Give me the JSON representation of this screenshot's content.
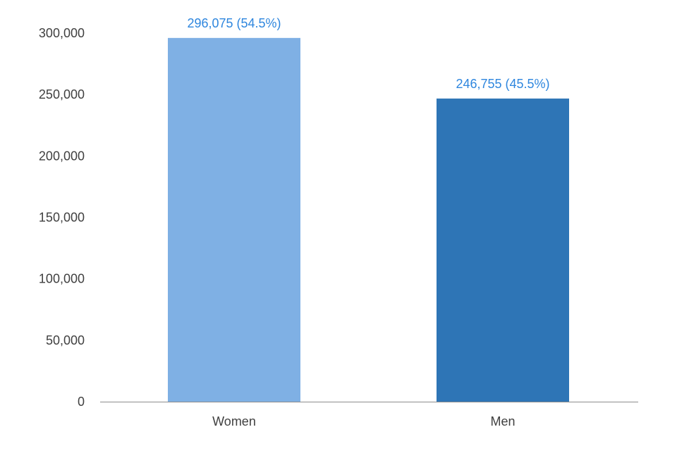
{
  "chart_data": {
    "type": "bar",
    "title": "",
    "xlabel": "",
    "ylabel": "",
    "categories": [
      "Women",
      "Men"
    ],
    "values": [
      296075,
      246755
    ],
    "data_labels": [
      "296,075 (54.5%)",
      "246,755 (45.5%)"
    ],
    "bar_colors": [
      "#7FB0E4",
      "#2E75B6"
    ],
    "data_label_color": "#2E86DE",
    "ylim": [
      0,
      300000
    ],
    "yticks": [
      0,
      50000,
      100000,
      150000,
      200000,
      250000,
      300000
    ],
    "ytick_labels": [
      "0",
      "50,000",
      "100,000",
      "150,000",
      "200,000",
      "250,000",
      "300,000"
    ],
    "grid": false,
    "legend": "none"
  }
}
